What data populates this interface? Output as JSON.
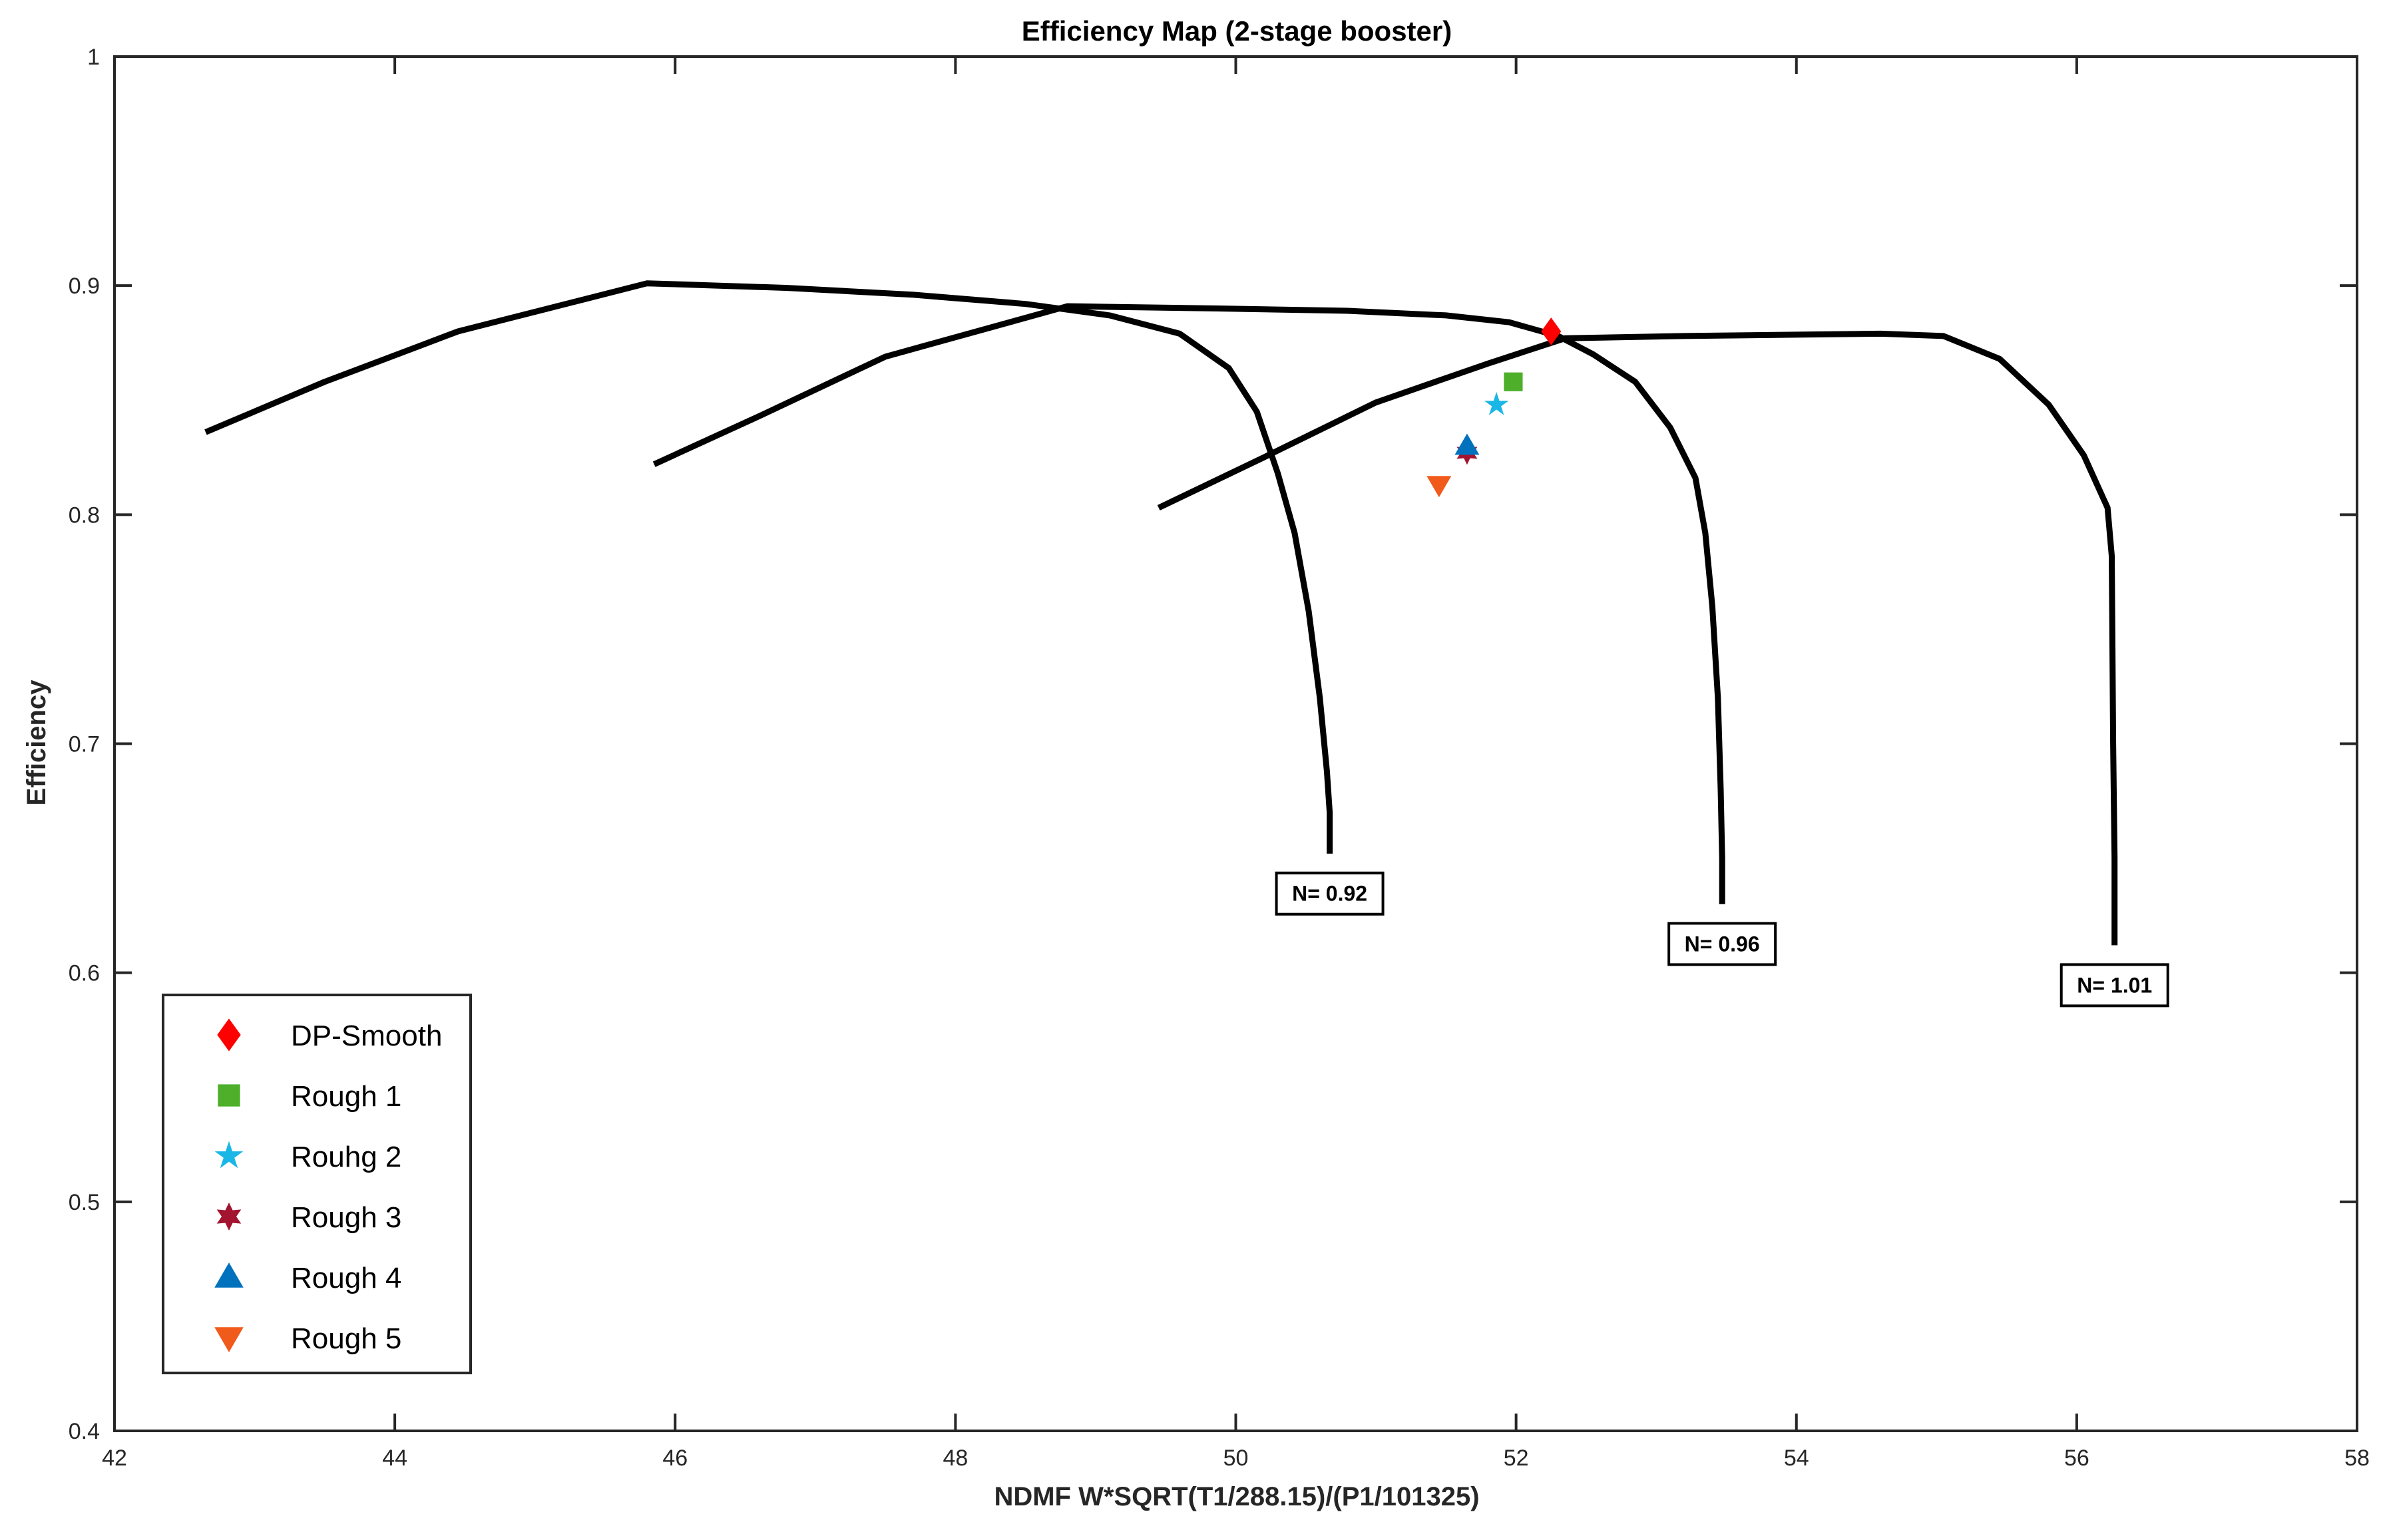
{
  "chart_data": {
    "type": "line",
    "title": "Efficiency Map (2-stage booster)",
    "xlabel": "NDMF W*SQRT(T1/288.15)/(P1/101325)",
    "ylabel": "Efficiency",
    "xlim": [
      42,
      58
    ],
    "ylim": [
      0.4,
      1.0
    ],
    "xticks": [
      "42",
      "44",
      "46",
      "48",
      "50",
      "52",
      "54",
      "56",
      "58"
    ],
    "yticks": [
      "0.4",
      "0.5",
      "0.6",
      "0.7",
      "0.8",
      "0.9",
      "1"
    ],
    "grid": false,
    "speed_lines": [
      {
        "label": "N= 0.92",
        "color": "#000000",
        "points": [
          [
            42.65,
            0.836
          ],
          [
            43.5,
            0.858
          ],
          [
            44.45,
            0.88
          ],
          [
            45.8,
            0.901
          ],
          [
            46.8,
            0.899
          ],
          [
            47.7,
            0.896
          ],
          [
            48.5,
            0.892
          ],
          [
            49.1,
            0.887
          ],
          [
            49.6,
            0.879
          ],
          [
            49.95,
            0.864
          ],
          [
            50.15,
            0.845
          ],
          [
            50.3,
            0.818
          ],
          [
            50.42,
            0.792
          ],
          [
            50.52,
            0.758
          ],
          [
            50.6,
            0.72
          ],
          [
            50.65,
            0.688
          ],
          [
            50.67,
            0.67
          ],
          [
            50.67,
            0.652
          ]
        ]
      },
      {
        "label": "N= 0.96",
        "color": "#000000",
        "points": [
          [
            45.85,
            0.822
          ],
          [
            46.6,
            0.843
          ],
          [
            47.5,
            0.869
          ],
          [
            48.8,
            0.891
          ],
          [
            49.9,
            0.89
          ],
          [
            50.8,
            0.889
          ],
          [
            51.5,
            0.887
          ],
          [
            51.95,
            0.884
          ],
          [
            52.3,
            0.878
          ],
          [
            52.55,
            0.87
          ],
          [
            52.85,
            0.858
          ],
          [
            53.1,
            0.838
          ],
          [
            53.28,
            0.816
          ],
          [
            53.35,
            0.792
          ],
          [
            53.4,
            0.76
          ],
          [
            53.44,
            0.72
          ],
          [
            53.46,
            0.68
          ],
          [
            53.47,
            0.65
          ],
          [
            53.47,
            0.63
          ]
        ]
      },
      {
        "label": "N= 1.01",
        "color": "#000000",
        "points": [
          [
            49.45,
            0.803
          ],
          [
            50.2,
            0.825
          ],
          [
            51.0,
            0.849
          ],
          [
            51.8,
            0.866
          ],
          [
            52.35,
            0.877
          ],
          [
            53.2,
            0.878
          ],
          [
            54.6,
            0.879
          ],
          [
            55.05,
            0.878
          ],
          [
            55.45,
            0.868
          ],
          [
            55.8,
            0.848
          ],
          [
            56.05,
            0.826
          ],
          [
            56.22,
            0.803
          ],
          [
            56.25,
            0.782
          ],
          [
            56.26,
            0.7
          ],
          [
            56.27,
            0.65
          ],
          [
            56.27,
            0.612
          ]
        ]
      }
    ],
    "markers": [
      {
        "label": "DP-Smooth",
        "symbol": "diamond",
        "color": "#ff0000",
        "x": 52.25,
        "y": 0.88
      },
      {
        "label": "Rough 1",
        "symbol": "square",
        "color": "#4daf2a",
        "x": 51.98,
        "y": 0.858
      },
      {
        "label": "Rouhg 2",
        "symbol": "pentagram",
        "color": "#1ab7e6",
        "x": 51.86,
        "y": 0.848
      },
      {
        "label": "Rough 3",
        "symbol": "hexagram",
        "color": "#a2142f",
        "x": 51.65,
        "y": 0.827
      },
      {
        "label": "Rough 4",
        "symbol": "triangle-up",
        "color": "#0072bd",
        "x": 51.65,
        "y": 0.83
      },
      {
        "label": "Rough 5",
        "symbol": "triangle-down",
        "color": "#f05a1a",
        "x": 51.45,
        "y": 0.813
      }
    ],
    "legend": {
      "position": "bottom-left",
      "entries": [
        "DP-Smooth",
        "Rough 1",
        "Rouhg 2",
        "Rough 3",
        "Rough 4",
        "Rough 5"
      ]
    }
  }
}
